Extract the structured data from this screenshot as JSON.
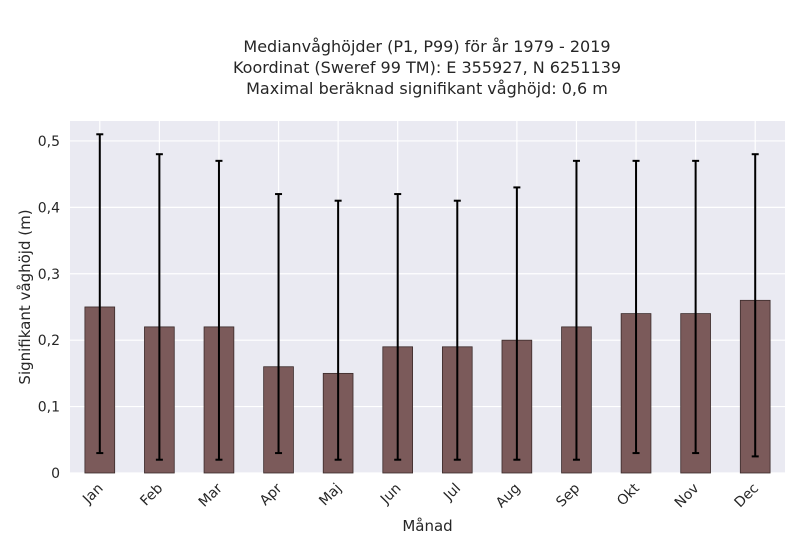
{
  "chart_data": {
    "type": "bar",
    "title_lines": [
      "Medianvåghöjder (P1, P99) för år 1979 - 2019",
      "Koordinat (Sweref 99 TM): E 355927, N 6251139",
      "Maximal beräknad signifikant våghöjd: 0,6 m"
    ],
    "xlabel": "Månad",
    "ylabel": "Signifikant våghöjd (m)",
    "categories": [
      "Jan",
      "Feb",
      "Mar",
      "Apr",
      "Maj",
      "Jun",
      "Jul",
      "Aug",
      "Sep",
      "Okt",
      "Nov",
      "Dec"
    ],
    "values": [
      0.25,
      0.22,
      0.22,
      0.16,
      0.15,
      0.19,
      0.19,
      0.2,
      0.22,
      0.24,
      0.24,
      0.26
    ],
    "error_low": [
      0.03,
      0.02,
      0.02,
      0.03,
      0.02,
      0.02,
      0.02,
      0.02,
      0.02,
      0.03,
      0.03,
      0.025
    ],
    "error_high": [
      0.51,
      0.48,
      0.47,
      0.42,
      0.41,
      0.42,
      0.41,
      0.43,
      0.47,
      0.47,
      0.47,
      0.48
    ],
    "ylim": [
      0,
      0.53
    ],
    "yticks": [
      0,
      0.1,
      0.2,
      0.3,
      0.4,
      0.5
    ],
    "ytick_labels": [
      "0",
      "0,1",
      "0,2",
      "0,3",
      "0,4",
      "0,5"
    ],
    "grid": true,
    "colors": {
      "bar": "#7b5a5a",
      "bar_edge": "#3a2a2a",
      "plot_bg": "#eaeaf2",
      "grid": "#ffffff",
      "error_bar": "#000000"
    }
  }
}
